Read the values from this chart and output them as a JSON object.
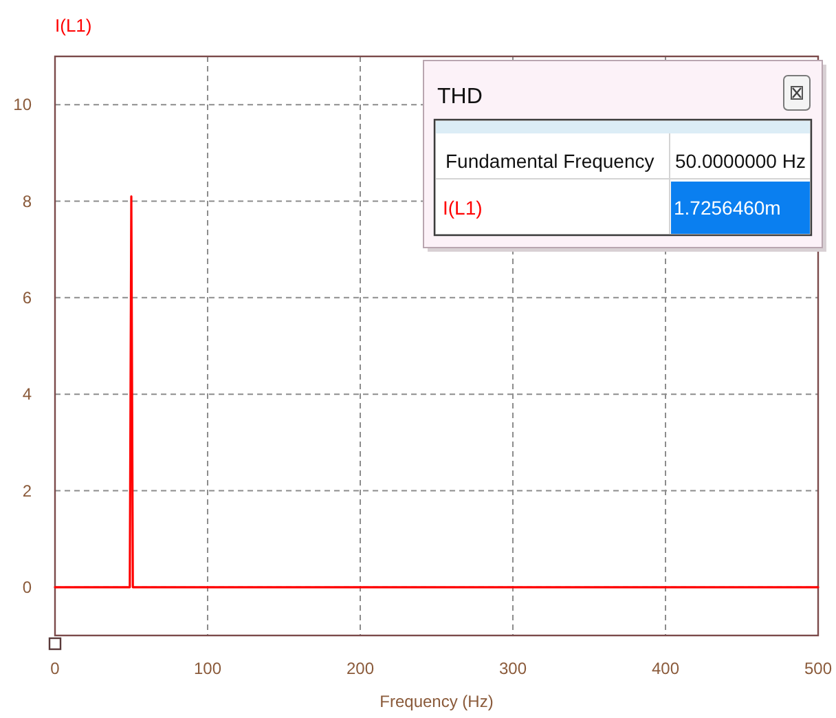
{
  "chart_data": {
    "type": "line",
    "ylabel": "I(L1)",
    "xlabel": "Frequency (Hz)",
    "x": [
      0,
      49,
      50,
      51,
      500
    ],
    "series": [
      {
        "color": "#ff0000",
        "values": [
          0,
          0,
          8.1,
          0,
          0
        ]
      }
    ],
    "xlim": [
      0,
      500
    ],
    "ylim": [
      -1,
      11
    ],
    "xticks": [
      0,
      100,
      200,
      300,
      400,
      500
    ],
    "yticks": [
      0,
      2,
      4,
      6,
      8,
      10
    ],
    "grid": true,
    "line_style": "solid",
    "annotations": [
      "THD",
      "Fundamental Frequency",
      "50.0000000 Hz",
      "I(L1)",
      "1.7256460m"
    ]
  }
}
